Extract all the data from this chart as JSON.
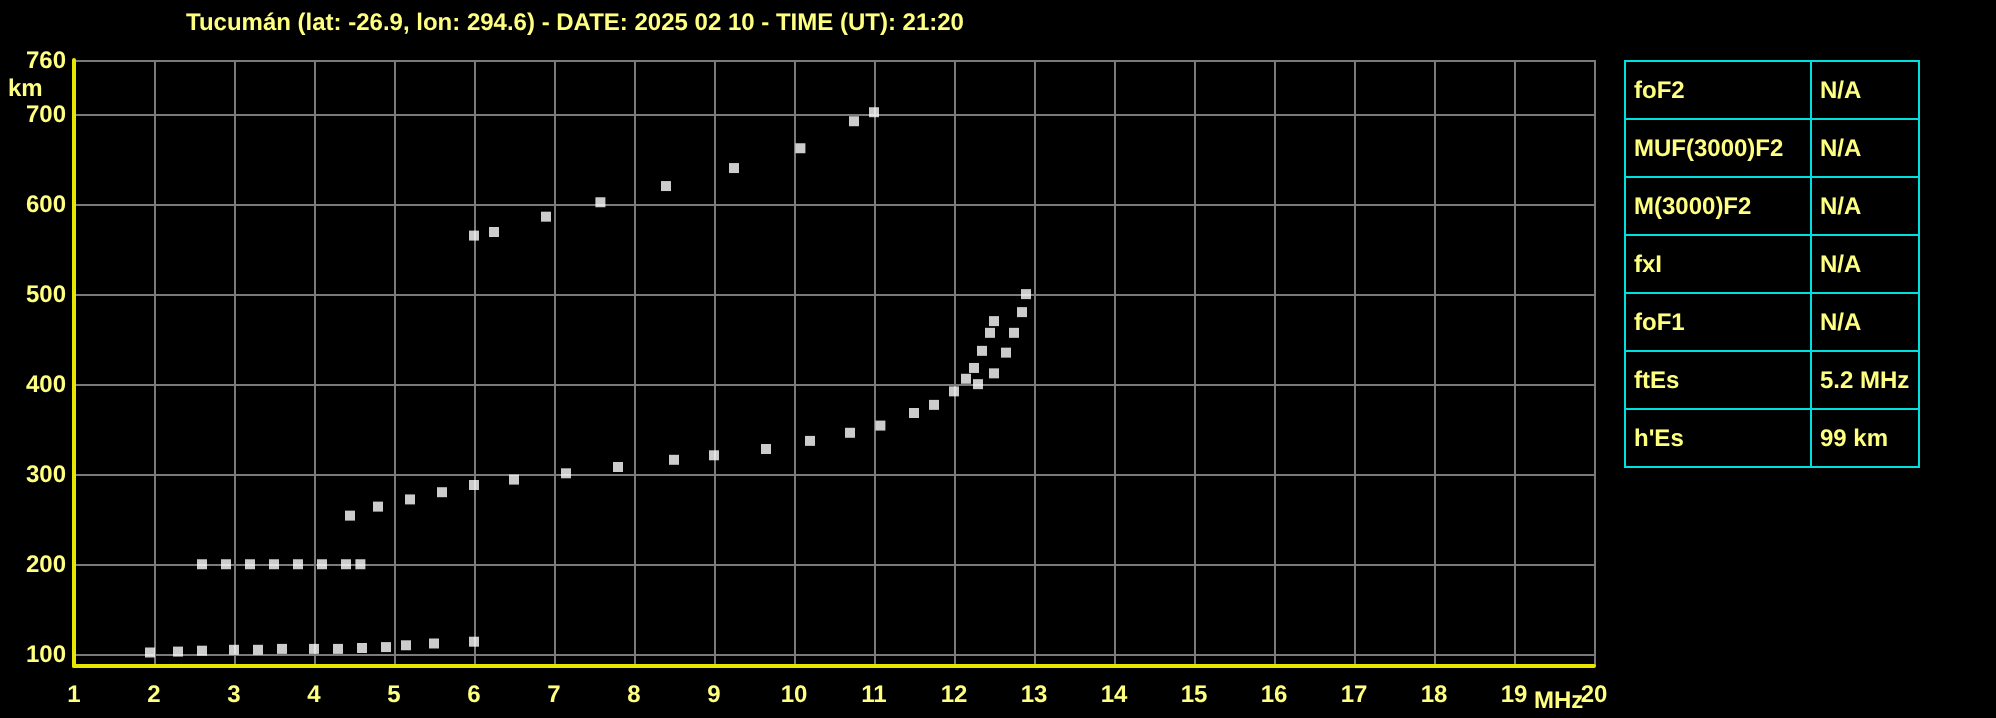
{
  "chart_data": [
    {
      "type": "scatter",
      "title": "Tucumán (lat: -26.9, lon: 294.6) - DATE: 2025 02 10 - TIME (UT): 21:20",
      "xlabel": "MHz",
      "ylabel": "km",
      "xlim": [
        1,
        20
      ],
      "xticks": [
        1,
        2,
        3,
        4,
        5,
        6,
        7,
        8,
        9,
        10,
        11,
        12,
        13,
        14,
        15,
        16,
        17,
        18,
        19,
        20
      ],
      "ylim": [
        87,
        760
      ],
      "yticks": [
        100,
        200,
        300,
        400,
        500,
        600,
        700,
        760
      ],
      "grid": true,
      "marker": "square",
      "series": [
        {
          "color": "#ffffff",
          "x": [
            1.95,
            2.3,
            2.6,
            3.0,
            3.3,
            3.6,
            4.0,
            4.3,
            4.6,
            4.9,
            5.15,
            5.5,
            6.0
          ],
          "values": [
            102,
            103,
            104,
            105,
            105,
            106,
            106,
            106,
            107,
            108,
            110,
            112,
            114
          ]
        },
        {
          "color": "#ffffff",
          "x": [
            2.6,
            2.9,
            3.2,
            3.5,
            3.8,
            4.1,
            4.4,
            4.58
          ],
          "values": [
            200,
            200,
            200,
            200,
            200,
            200,
            200,
            200
          ]
        },
        {
          "color": "#ffffff",
          "x": [
            4.45,
            4.8,
            5.2,
            5.6,
            6.0,
            6.5,
            7.15,
            7.8,
            8.5,
            9.0,
            9.65,
            10.2,
            10.7,
            11.08,
            11.5,
            11.75,
            12.0
          ],
          "values": [
            254,
            264,
            272,
            280,
            288,
            294,
            301,
            308,
            316,
            321,
            328,
            337,
            346,
            354,
            368,
            377,
            392
          ]
        },
        {
          "color": "#ffffff",
          "x": [
            12.15,
            12.25,
            12.35,
            12.45,
            12.5
          ],
          "values": [
            406,
            418,
            437,
            457,
            470
          ]
        },
        {
          "color": "#ffffff",
          "x": [
            12.3,
            12.5,
            12.65,
            12.75,
            12.85,
            12.9
          ],
          "values": [
            400,
            412,
            435,
            457,
            480,
            500
          ]
        },
        {
          "color": "#ffffff",
          "x": [
            6.0,
            6.25,
            6.9,
            7.58,
            8.4,
            9.25,
            10.08,
            10.75,
            11.0
          ],
          "values": [
            565,
            569,
            586,
            602,
            620,
            640,
            662,
            692,
            702
          ]
        }
      ]
    },
    {
      "type": "other",
      "categories": [
        "foF2",
        "MUF(3000)F2",
        "M(3000)F2",
        "fxI",
        "foF1",
        "ftEs",
        "h'Es"
      ],
      "value_labels": [
        "N/A",
        "N/A",
        "N/A",
        "N/A",
        "N/A",
        "5.2 MHz",
        "99 km"
      ]
    }
  ]
}
